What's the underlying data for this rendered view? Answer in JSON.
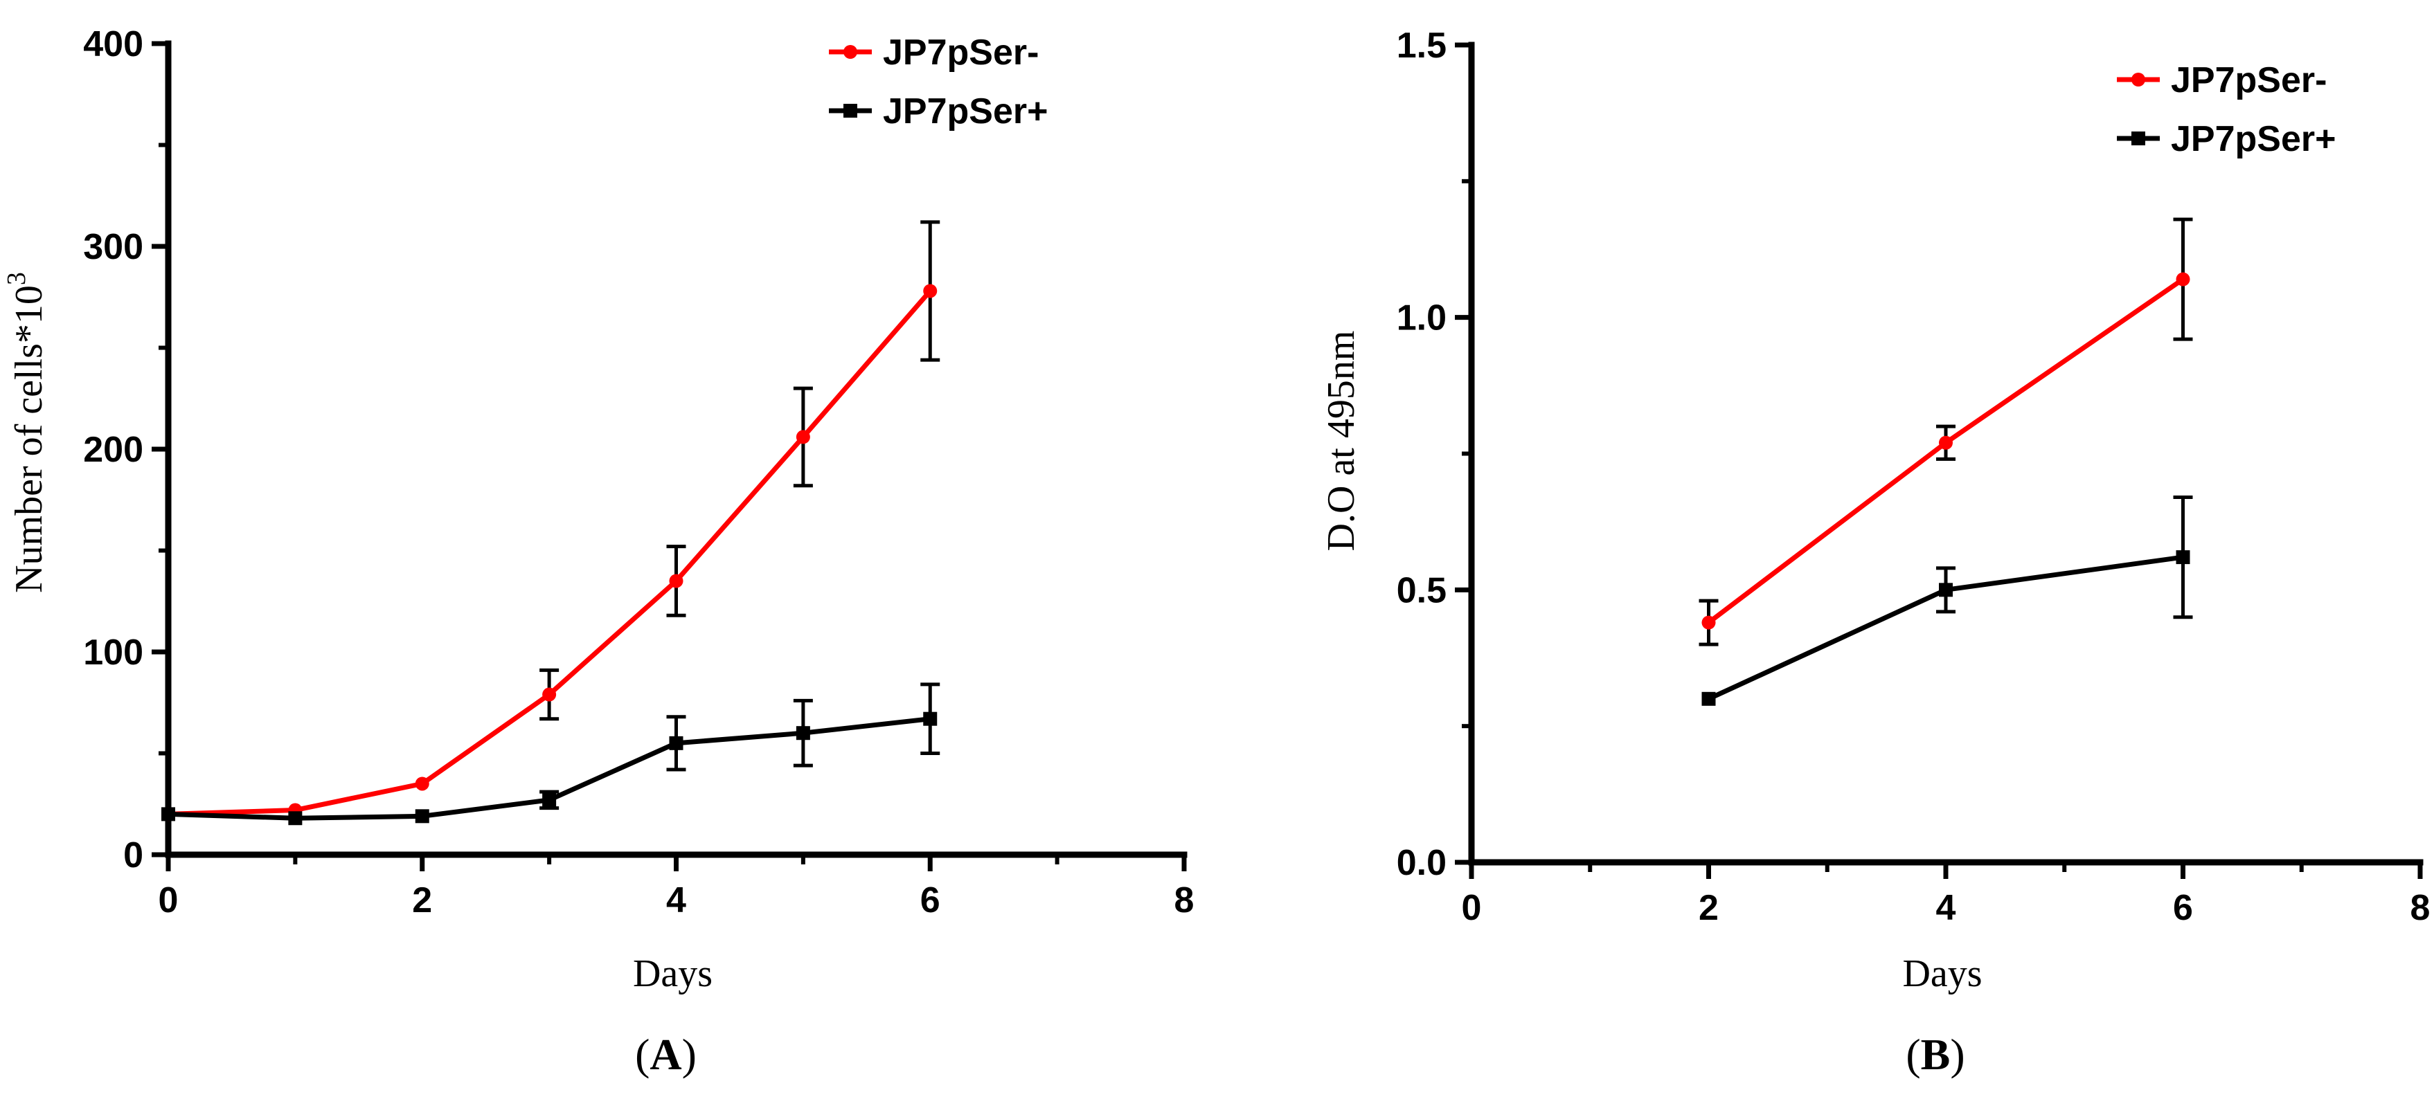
{
  "colors": {
    "red": "#ff0000",
    "black": "#000000"
  },
  "chart_data": [
    {
      "type": "line",
      "panel_label": "(A)",
      "panel_letter": "A",
      "xlabel": "Days",
      "ylabel_main": "Number of cells*10",
      "ylabel_sup": "3",
      "xlim": [
        0,
        8
      ],
      "ylim": [
        0,
        400
      ],
      "xticks": [
        0,
        2,
        4,
        6,
        8
      ],
      "yticks": [
        0,
        100,
        200,
        300,
        400
      ],
      "x_minor_step": 1,
      "y_minor_step": 50,
      "legend_position": "top-right",
      "series": [
        {
          "name": "JP7pSer-",
          "marker": "circle",
          "color": "#ff0000",
          "x": [
            0,
            1,
            2,
            3,
            4,
            5,
            6
          ],
          "y": [
            20,
            22,
            35,
            79,
            135,
            206,
            278
          ],
          "err": [
            0,
            0,
            0,
            12,
            17,
            24,
            34
          ]
        },
        {
          "name": "JP7pSer+",
          "marker": "square",
          "color": "#000000",
          "x": [
            0,
            1,
            2,
            3,
            4,
            5,
            6
          ],
          "y": [
            20,
            18,
            19,
            27,
            55,
            60,
            67
          ],
          "err": [
            0,
            0,
            0,
            4,
            13,
            16,
            17
          ]
        }
      ]
    },
    {
      "type": "line",
      "panel_label": "(B)",
      "panel_letter": "B",
      "xlabel": "Days",
      "ylabel_main": "D.O at 495nm",
      "ylabel_sup": "",
      "xlim": [
        0,
        8
      ],
      "ylim": [
        0,
        1.5
      ],
      "xticks": [
        0,
        2,
        4,
        6,
        8
      ],
      "yticks": [
        0.0,
        0.5,
        1.0,
        1.5
      ],
      "x_minor_step": 1,
      "y_minor_step": 0.25,
      "legend_position": "top-right",
      "series": [
        {
          "name": "JP7pSer-",
          "marker": "circle",
          "color": "#ff0000",
          "x": [
            2,
            4,
            6
          ],
          "y": [
            0.44,
            0.77,
            1.07
          ],
          "err": [
            0.04,
            0.03,
            0.11
          ]
        },
        {
          "name": "JP7pSer+",
          "marker": "square",
          "color": "#000000",
          "x": [
            2,
            4,
            6
          ],
          "y": [
            0.3,
            0.5,
            0.56
          ],
          "err": [
            0,
            0.04,
            0.11
          ]
        }
      ]
    }
  ]
}
